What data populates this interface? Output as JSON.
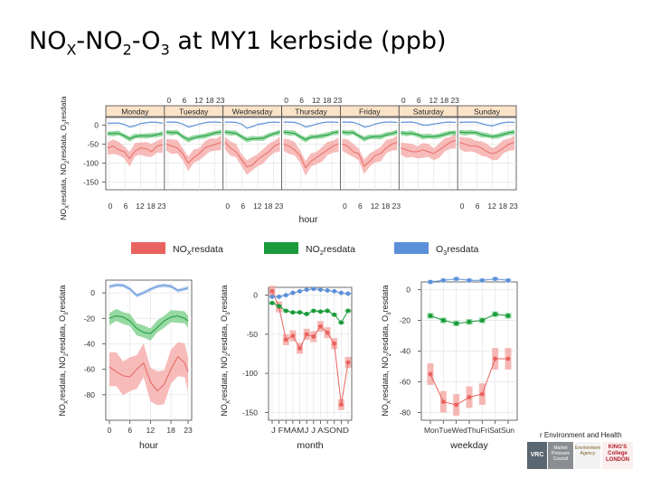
{
  "title": {
    "prefix": "NO",
    "prefix_sub": "X",
    "part2": "-NO",
    "part2_sub": "2",
    "part3": "-O",
    "part3_sub": "3",
    "suffix": " at MY1 kerbside (ppb)"
  },
  "footer": {
    "text": "r Environment and Health",
    "logo_vrc": "VRC",
    "logo_mpc": "Market Pressure Council",
    "logo_ea": "Environment Agency",
    "logo_kcl": "KING'S College LONDON"
  },
  "colors": {
    "NOx": "#e8625f",
    "NOx_band": "#f4a6a3",
    "NO2": "#1a9a3a",
    "NO2_band": "#74cc84",
    "O3": "#5b8fd8",
    "O3_band": "#a9c6ee",
    "strip": "#fbe3c8"
  },
  "chart_data": [
    {
      "type": "line",
      "panel": "weekday-hour",
      "ylabel": "NOXresdata, NO2resdata, O3resdata",
      "xlabel": "hour",
      "ylim": [
        -170,
        20
      ],
      "yticks": [
        0,
        -50,
        -100,
        -150
      ],
      "xticks_hours": [
        "0",
        "6",
        "12",
        "18 23"
      ],
      "panels": [
        "Monday",
        "Tuesday",
        "Wednesday",
        "Thursday",
        "Friday",
        "Saturday",
        "Sunday"
      ],
      "grid": true,
      "series": [
        {
          "name": "NO2resdata",
          "key": "NO2",
          "values": [
            [
              -22,
              -22,
              -22,
              -28,
              -36,
              -30,
              -28,
              -28,
              -28,
              -25,
              -22
            ],
            [
              -18,
              -20,
              -20,
              -30,
              -38,
              -34,
              -30,
              -28,
              -25,
              -20,
              -18
            ],
            [
              -18,
              -20,
              -22,
              -30,
              -38,
              -36,
              -35,
              -34,
              -28,
              -22,
              -18
            ],
            [
              -18,
              -20,
              -22,
              -30,
              -38,
              -32,
              -30,
              -28,
              -26,
              -20,
              -18
            ],
            [
              -18,
              -20,
              -20,
              -28,
              -36,
              -32,
              -30,
              -30,
              -26,
              -22,
              -18
            ],
            [
              -20,
              -22,
              -22,
              -25,
              -30,
              -30,
              -30,
              -28,
              -25,
              -20,
              -20
            ],
            [
              -18,
              -20,
              -20,
              -20,
              -25,
              -28,
              -30,
              -28,
              -25,
              -20,
              -18
            ]
          ]
        },
        {
          "name": "O3resdata",
          "key": "O3",
          "values": [
            [
              5,
              5,
              5,
              2,
              -5,
              -2,
              4,
              6,
              8,
              7,
              5
            ],
            [
              8,
              8,
              7,
              3,
              -5,
              -2,
              3,
              6,
              8,
              8,
              7
            ],
            [
              8,
              8,
              7,
              3,
              -8,
              -4,
              2,
              4,
              7,
              8,
              7
            ],
            [
              8,
              8,
              7,
              3,
              -5,
              -2,
              3,
              6,
              8,
              8,
              7
            ],
            [
              8,
              8,
              7,
              3,
              -5,
              -3,
              3,
              6,
              8,
              8,
              7
            ],
            [
              7,
              8,
              8,
              5,
              0,
              0,
              3,
              5,
              7,
              8,
              7
            ],
            [
              7,
              8,
              8,
              8,
              4,
              0,
              -2,
              3,
              6,
              8,
              7
            ]
          ]
        },
        {
          "name": "NOXresdata",
          "key": "NOx",
          "values": [
            [
              -60,
              -55,
              -65,
              -70,
              -88,
              -68,
              -60,
              -62,
              -70,
              -55,
              -52
            ],
            [
              -50,
              -55,
              -60,
              -75,
              -100,
              -85,
              -75,
              -60,
              -55,
              -50,
              -45
            ],
            [
              -45,
              -60,
              -70,
              -90,
              -110,
              -105,
              -90,
              -80,
              -70,
              -55,
              -48
            ],
            [
              -50,
              -55,
              -65,
              -80,
              -112,
              -95,
              -85,
              -75,
              -65,
              -55,
              -50
            ],
            [
              -50,
              -55,
              -70,
              -75,
              -108,
              -95,
              -80,
              -75,
              -60,
              -50,
              -45
            ],
            [
              -60,
              -65,
              -70,
              -70,
              -65,
              -70,
              -75,
              -65,
              -55,
              -45,
              -40
            ],
            [
              -45,
              -50,
              -55,
              -55,
              -60,
              -70,
              -75,
              -70,
              -60,
              -50,
              -45
            ]
          ]
        }
      ]
    },
    {
      "type": "line",
      "panel": "hour",
      "xlabel": "hour",
      "ylabel": "NOXresdata, NO2resdata, O3resdata",
      "ylim": [
        -100,
        10
      ],
      "yticks": [
        0,
        -20,
        -40,
        -60,
        -80
      ],
      "xticks": [
        "0",
        "6",
        "12",
        "18",
        "23"
      ],
      "x": [
        0,
        2,
        4,
        6,
        8,
        10,
        12,
        14,
        16,
        18,
        20,
        22,
        23
      ],
      "series": [
        {
          "name": "O3resdata",
          "key": "O3",
          "values": [
            5,
            6,
            6,
            3,
            -2,
            0,
            3,
            5,
            6,
            5,
            2,
            3,
            4
          ]
        },
        {
          "name": "NO2resdata",
          "key": "NO2",
          "values": [
            -20,
            -18,
            -19,
            -22,
            -28,
            -31,
            -32,
            -27,
            -22,
            -19,
            -18,
            -20,
            -22
          ]
        },
        {
          "name": "NOXresdata",
          "key": "NOx",
          "values": [
            -58,
            -62,
            -65,
            -66,
            -60,
            -55,
            -70,
            -77,
            -72,
            -60,
            -50,
            -55,
            -62
          ]
        }
      ]
    },
    {
      "type": "line",
      "panel": "month",
      "xlabel": "month",
      "ylabel": "NOXresdata, NO2resdata, O3resdata",
      "ylim": [
        -160,
        10
      ],
      "yticks": [
        0,
        -50,
        -100,
        -150
      ],
      "categories": [
        "J",
        "F",
        "M",
        "A",
        "M",
        "J",
        "J",
        "A",
        "S",
        "O",
        "N",
        "D"
      ],
      "tick_text": "J FMAMJ J ASOND",
      "series": [
        {
          "name": "O3resdata",
          "key": "O3",
          "values": [
            -2,
            -2,
            0,
            3,
            5,
            7,
            8,
            7,
            6,
            5,
            3,
            2
          ]
        },
        {
          "name": "NO2resdata",
          "key": "NO2",
          "values": [
            -10,
            -14,
            -20,
            -22,
            -22,
            -24,
            -20,
            -21,
            -20,
            -25,
            -35,
            -20
          ]
        },
        {
          "name": "NOXresdata",
          "key": "NOx",
          "values": [
            5,
            -15,
            -57,
            -52,
            -68,
            -50,
            -53,
            -40,
            -48,
            -62,
            -140,
            -86
          ]
        }
      ]
    },
    {
      "type": "line",
      "panel": "weekday",
      "xlabel": "weekday",
      "ylabel": "NOXresdata, NO2resdata, O3resdata",
      "ylim": [
        -85,
        5
      ],
      "yticks": [
        0,
        -20,
        -40,
        -60,
        -80
      ],
      "categories": [
        "Mon",
        "Tue",
        "Wed",
        "Thu",
        "Fri",
        "Sat",
        "Sun"
      ],
      "tick_text": "MonTueWedThuFriSatSun",
      "series": [
        {
          "name": "O3resdata",
          "key": "O3",
          "values": [
            5,
            6,
            7,
            6,
            6,
            7,
            6
          ]
        },
        {
          "name": "NO2resdata",
          "key": "NO2",
          "values": [
            -17,
            -20,
            -22,
            -21,
            -20,
            -16,
            -17
          ]
        },
        {
          "name": "NOXresdata",
          "key": "NOx",
          "values": [
            -55,
            -73,
            -75,
            -70,
            -68,
            -45,
            -45
          ]
        }
      ]
    }
  ],
  "legend": [
    {
      "key": "NOx",
      "base": "NO",
      "sub": "X",
      "rest": "resdata"
    },
    {
      "key": "NO2",
      "base": "NO",
      "sub": "2",
      "rest": "resdata"
    },
    {
      "key": "O3",
      "base": "O",
      "sub": "3",
      "rest": "resdata"
    }
  ]
}
